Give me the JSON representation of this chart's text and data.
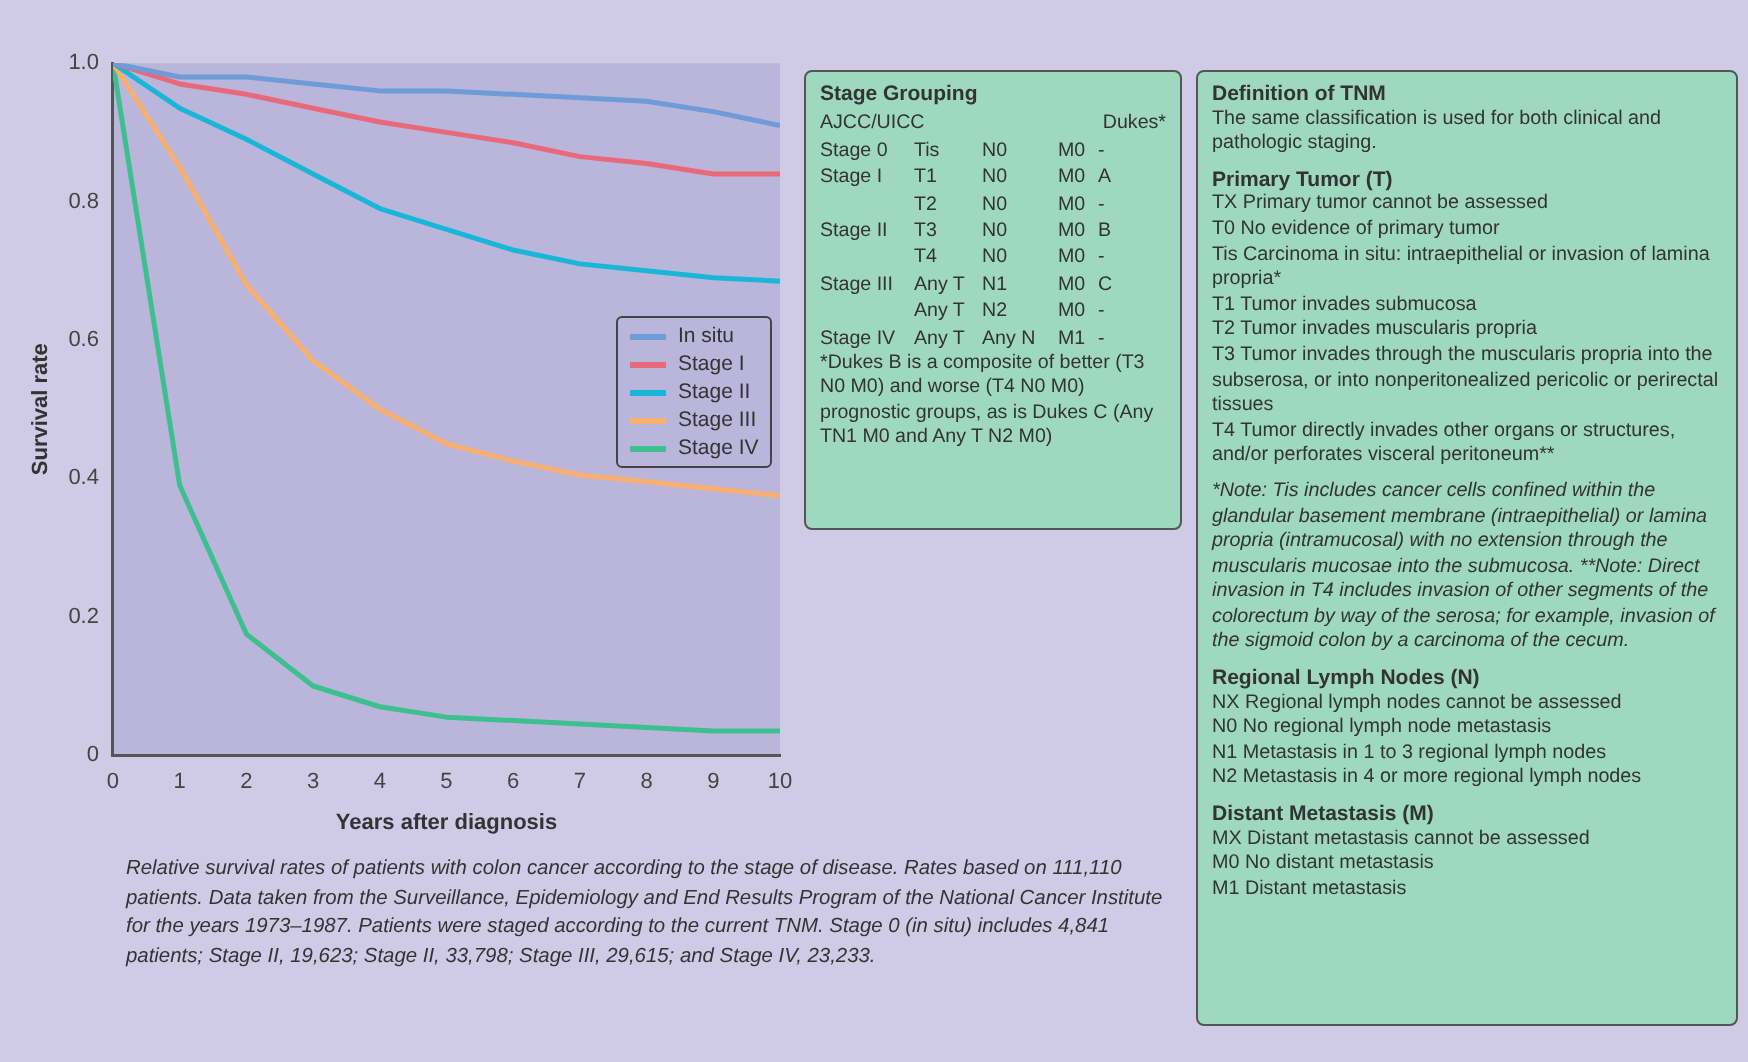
{
  "chart_data": [
    {
      "type": "line",
      "xlabel": "Years after diagnosis",
      "ylabel": "Survival rate",
      "x": [
        0,
        1,
        2,
        3,
        4,
        5,
        6,
        7,
        8,
        9,
        10
      ],
      "xlim": [
        0,
        10
      ],
      "xticks": [
        0,
        1,
        2,
        3,
        4,
        5,
        6,
        7,
        8,
        9,
        10
      ],
      "ylim": [
        0,
        1
      ],
      "yticks": [
        0,
        0.2,
        0.4,
        0.6,
        0.8,
        {
          "value": 1,
          "label": "1.0"
        }
      ],
      "grid": false,
      "legend": "right",
      "marker": "none",
      "line_style": "solid",
      "series": [
        {
          "name": "In situ",
          "color": "#6f9bd8",
          "values": [
            1,
            0.98,
            0.98,
            0.97,
            0.96,
            0.96,
            0.955,
            0.95,
            0.945,
            0.93,
            0.91
          ]
        },
        {
          "name": "Stage I",
          "color": "#e86a7a",
          "values": [
            1,
            0.97,
            0.955,
            0.935,
            0.915,
            0.9,
            0.885,
            0.865,
            0.855,
            0.84,
            0.84
          ]
        },
        {
          "name": "Stage II",
          "color": "#1ab6d8",
          "values": [
            1,
            0.935,
            0.89,
            0.84,
            0.79,
            0.76,
            0.73,
            0.71,
            0.7,
            0.69,
            0.685
          ]
        },
        {
          "name": "Stage III",
          "color": "#f7b070",
          "values": [
            1,
            0.85,
            0.68,
            0.57,
            0.5,
            0.45,
            0.425,
            0.405,
            0.395,
            0.385,
            0.375
          ]
        },
        {
          "name": "Stage IV",
          "color": "#3dbf8f",
          "values": [
            1,
            0.39,
            0.175,
            0.1,
            0.07,
            0.055,
            0.05,
            0.045,
            0.04,
            0.035,
            0.035
          ]
        }
      ],
      "annotations": [
        "Relative survival rates of patients with colon cancer according to the stage of disease. Rates based on 111,110 patients. Data taken from the Surveillance, Epidemiology and End Results Program of the National Cancer Institute for the years 1973–1987. Patients were staged according to the current TNM. Stage 0 (in situ) includes 4,841 patients; Stage II, 19,623; Stage II, 33,798; Stage III, 29,615; and Stage IV, 23,233."
      ]
    },
    {
      "type": "other",
      "title": "Stage Grouping",
      "annotations": [
        "AJCC/UICC  Dukes*",
        "Stage 0  Tis  N0  M0  -",
        "Stage I  T1  N0  M0  A",
        "T2  N0  M0  -",
        "Stage II  T3  N0  M0  B",
        "T4  N0  M0  -",
        "Stage III  Any T  N1  M0  C",
        "Any T  N2  M0  -",
        "Stage IV  Any T  Any N  M1  -",
        "*Dukes B is a composite of better (T3 N0 M0) and worse (T4 N0 M0) prognostic groups, as is Dukes C (Any TN1 M0 and Any T N2 M0)"
      ]
    },
    {
      "type": "other",
      "title": "Definition of TNM",
      "annotations": [
        "The same classification is used for both clinical and pathologic staging."
      ]
    },
    {
      "type": "other",
      "title": "Primary Tumor (T)",
      "annotations": [
        "TX Primary tumor cannot be assessed",
        "T0 No evidence of primary tumor",
        "Tis Carcinoma in situ: intraepithelial or invasion of lamina propria*",
        "T1 Tumor invades submucosa",
        "T2 Tumor invades muscularis propria",
        "T3 Tumor invades through the muscularis propria into the subserosa, or into nonperitonealized pericolic or perirectal tissues",
        "T4 Tumor directly invades other organs or structures, and/or perforates visceral peritoneum**",
        "*Note: Tis includes cancer cells confined within the glandular basement membrane (intraepithelial) or lamina propria (intramucosal) with no extension through the muscularis mucosae into the submucosa. **Note: Direct invasion in T4 includes invasion of other segments of the colorectum by way of the serosa; for example, invasion of the sigmoid colon by a carcinoma of the cecum."
      ]
    },
    {
      "type": "other",
      "title": "Regional Lymph Nodes (N)",
      "annotations": [
        "NX Regional lymph nodes cannot be assessed",
        "N0 No regional lymph node metastasis",
        "N1 Metastasis in 1 to 3 regional lymph nodes",
        "N2 Metastasis in 4 or more regional lymph nodes"
      ]
    },
    {
      "type": "other",
      "title": "Distant Metastasis (M)",
      "annotations": [
        "MX Distant metastasis cannot be assessed",
        "M0 No distant metastasis",
        "M1 Distant metastasis"
      ]
    }
  ]
}
